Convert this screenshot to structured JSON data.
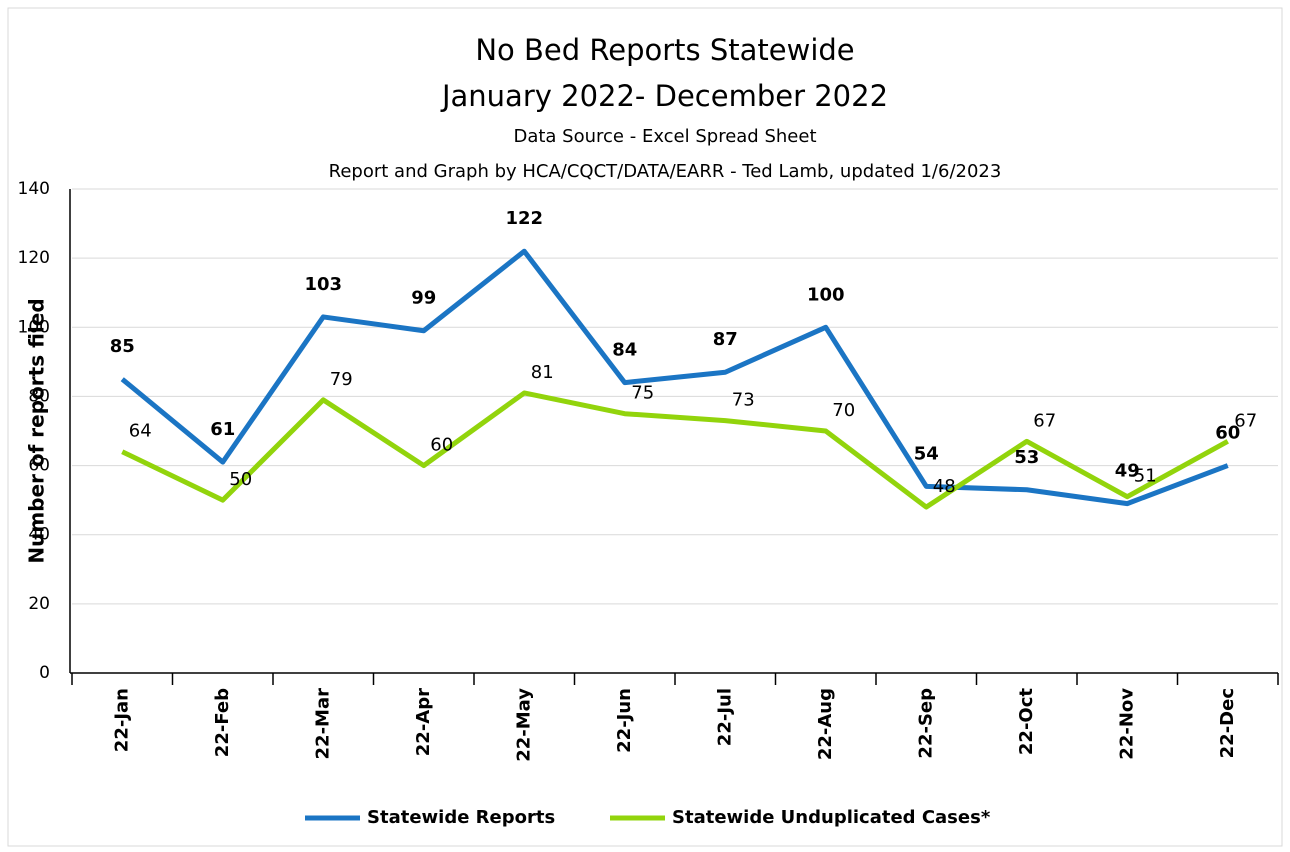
{
  "chart_data": {
    "type": "line",
    "title": "No Bed Reports Statewide",
    "subtitle": "January 2022- December 2022",
    "annotations": [
      "Data Source - Excel Spread Sheet",
      "Report and Graph by HCA/CQCT/DATA/EARR -  Ted Lamb, updated 1/6/2023"
    ],
    "y_label": "Number of reports filed",
    "categories": [
      "22-Jan",
      "22-Feb",
      "22-Mar",
      "22-Apr",
      "22-May",
      "22-Jun",
      "22-Jul",
      "22-Aug",
      "22-Sep",
      "22-Oct",
      "22-Nov",
      "22-Dec"
    ],
    "series": [
      {
        "name": "Statewide Reports",
        "color": "#1b75c4",
        "values": [
          85,
          61,
          103,
          99,
          122,
          84,
          87,
          100,
          54,
          53,
          49,
          60
        ]
      },
      {
        "name": "Statewide Unduplicated Cases*",
        "color": "#92d40c",
        "values": [
          64,
          50,
          79,
          60,
          81,
          75,
          73,
          70,
          48,
          67,
          51,
          67
        ]
      }
    ],
    "ylim": [
      0,
      140
    ],
    "yticks": [
      0,
      20,
      40,
      60,
      80,
      100,
      120,
      140
    ],
    "grid": true,
    "legend": "bottom"
  }
}
